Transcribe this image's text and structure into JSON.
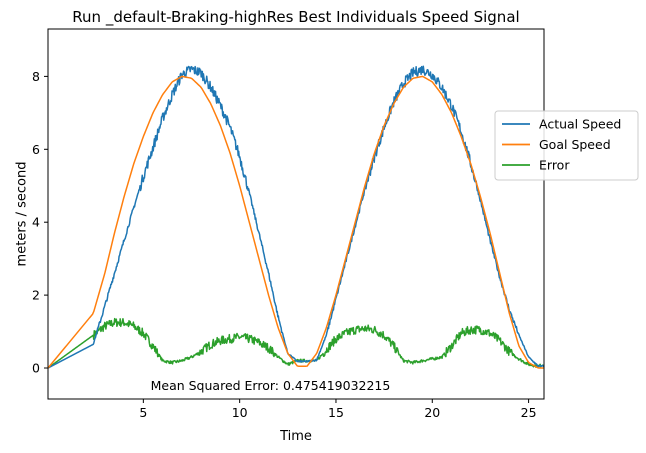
{
  "chart_data": {
    "type": "line",
    "title": "Run _default-Braking-highRes Best Individuals Speed Signal",
    "xlabel": "Time",
    "ylabel": "meters / second",
    "xlim": [
      0.05,
      25.8
    ],
    "ylim": [
      -0.85,
      9.3
    ],
    "xticks": [
      5,
      10,
      15,
      20,
      25
    ],
    "yticks": [
      0,
      2,
      4,
      6,
      8
    ],
    "grid": false,
    "legend_position": "right, partially outside plot area",
    "annotation": "Mean Squared Error: 0.475419032215",
    "series": [
      {
        "name": "Actual Speed",
        "color": "#1f77b4",
        "noisy": true,
        "points": [
          [
            0.05,
            0
          ],
          [
            2.4,
            0.65
          ],
          [
            3,
            1.7
          ],
          [
            3.5,
            2.6
          ],
          [
            4,
            3.5
          ],
          [
            4.5,
            4.4
          ],
          [
            5,
            5.25
          ],
          [
            5.5,
            6.05
          ],
          [
            6,
            6.85
          ],
          [
            6.5,
            7.5
          ],
          [
            7,
            8.05
          ],
          [
            7.5,
            8.2
          ],
          [
            8,
            8.1
          ],
          [
            8.5,
            7.7
          ],
          [
            9,
            7.2
          ],
          [
            9.5,
            6.6
          ],
          [
            10,
            5.8
          ],
          [
            10.5,
            4.8
          ],
          [
            11,
            3.7
          ],
          [
            11.5,
            2.6
          ],
          [
            12,
            1.4
          ],
          [
            12.5,
            0.4
          ],
          [
            13,
            0.18
          ],
          [
            13.5,
            0.18
          ],
          [
            14,
            0.22
          ],
          [
            14.5,
            0.9
          ],
          [
            15,
            1.9
          ],
          [
            15.5,
            2.9
          ],
          [
            16,
            3.9
          ],
          [
            16.5,
            4.9
          ],
          [
            17,
            5.8
          ],
          [
            17.5,
            6.6
          ],
          [
            18,
            7.3
          ],
          [
            18.5,
            7.8
          ],
          [
            19,
            8.1
          ],
          [
            19.5,
            8.2
          ],
          [
            20,
            8.05
          ],
          [
            20.5,
            7.7
          ],
          [
            21,
            7.2
          ],
          [
            21.5,
            6.5
          ],
          [
            22,
            5.6
          ],
          [
            22.5,
            4.6
          ],
          [
            23,
            3.5
          ],
          [
            23.5,
            2.5
          ],
          [
            24,
            1.6
          ],
          [
            24.5,
            0.9
          ],
          [
            25,
            0.3
          ],
          [
            25.5,
            0.05
          ],
          [
            25.8,
            0.05
          ]
        ]
      },
      {
        "name": "Goal Speed",
        "color": "#ff7f0e",
        "noisy": false,
        "points": [
          [
            0.05,
            0
          ],
          [
            2.4,
            1.5
          ],
          [
            3,
            2.6
          ],
          [
            3.5,
            3.7
          ],
          [
            4,
            4.7
          ],
          [
            4.5,
            5.6
          ],
          [
            5,
            6.35
          ],
          [
            5.5,
            7.0
          ],
          [
            6,
            7.5
          ],
          [
            6.5,
            7.85
          ],
          [
            7,
            8.0
          ],
          [
            7.5,
            7.95
          ],
          [
            8,
            7.7
          ],
          [
            8.5,
            7.25
          ],
          [
            9,
            6.65
          ],
          [
            9.5,
            5.9
          ],
          [
            10,
            5.0
          ],
          [
            10.5,
            4.0
          ],
          [
            11,
            3.0
          ],
          [
            11.5,
            2.0
          ],
          [
            12,
            1.1
          ],
          [
            12.5,
            0.4
          ],
          [
            13,
            0.05
          ],
          [
            13.5,
            0.05
          ],
          [
            14,
            0.4
          ],
          [
            14.5,
            1.1
          ],
          [
            15,
            2.0
          ],
          [
            15.5,
            3.0
          ],
          [
            16,
            4.0
          ],
          [
            16.5,
            5.0
          ],
          [
            17,
            5.9
          ],
          [
            17.5,
            6.65
          ],
          [
            18,
            7.25
          ],
          [
            18.5,
            7.7
          ],
          [
            19,
            7.95
          ],
          [
            19.5,
            8.0
          ],
          [
            20,
            7.85
          ],
          [
            20.5,
            7.5
          ],
          [
            21,
            7.0
          ],
          [
            21.5,
            6.35
          ],
          [
            22,
            5.6
          ],
          [
            22.5,
            4.7
          ],
          [
            23,
            3.7
          ],
          [
            23.5,
            2.6
          ],
          [
            24,
            1.5
          ],
          [
            24.5,
            0.6
          ],
          [
            25,
            0.15
          ],
          [
            25.5,
            0.0
          ],
          [
            25.8,
            0.0
          ]
        ]
      },
      {
        "name": "Error",
        "color": "#2ca02c",
        "noisy": true,
        "points": [
          [
            0.05,
            0
          ],
          [
            2.4,
            0.9
          ],
          [
            3,
            1.15
          ],
          [
            3.5,
            1.25
          ],
          [
            4,
            1.25
          ],
          [
            4.5,
            1.15
          ],
          [
            5,
            0.95
          ],
          [
            5.5,
            0.6
          ],
          [
            6,
            0.2
          ],
          [
            6.5,
            0.15
          ],
          [
            7,
            0.2
          ],
          [
            7.5,
            0.3
          ],
          [
            8,
            0.45
          ],
          [
            8.5,
            0.65
          ],
          [
            9,
            0.75
          ],
          [
            9.5,
            0.8
          ],
          [
            10,
            0.85
          ],
          [
            10.5,
            0.8
          ],
          [
            11,
            0.7
          ],
          [
            11.5,
            0.55
          ],
          [
            12,
            0.3
          ],
          [
            12.5,
            0.1
          ],
          [
            13,
            0.2
          ],
          [
            13.5,
            0.2
          ],
          [
            14,
            0.2
          ],
          [
            14.5,
            0.5
          ],
          [
            15,
            0.8
          ],
          [
            15.5,
            0.95
          ],
          [
            16,
            1.05
          ],
          [
            16.5,
            1.08
          ],
          [
            17,
            1.05
          ],
          [
            17.5,
            0.9
          ],
          [
            18,
            0.6
          ],
          [
            18.5,
            0.2
          ],
          [
            19,
            0.15
          ],
          [
            19.5,
            0.2
          ],
          [
            20,
            0.25
          ],
          [
            20.5,
            0.3
          ],
          [
            21,
            0.6
          ],
          [
            21.5,
            0.95
          ],
          [
            22,
            1.05
          ],
          [
            22.5,
            1.05
          ],
          [
            23,
            0.95
          ],
          [
            23.5,
            0.75
          ],
          [
            24,
            0.45
          ],
          [
            24.5,
            0.25
          ],
          [
            25,
            0.1
          ],
          [
            25.5,
            0.05
          ],
          [
            25.8,
            0.1
          ]
        ]
      }
    ]
  }
}
